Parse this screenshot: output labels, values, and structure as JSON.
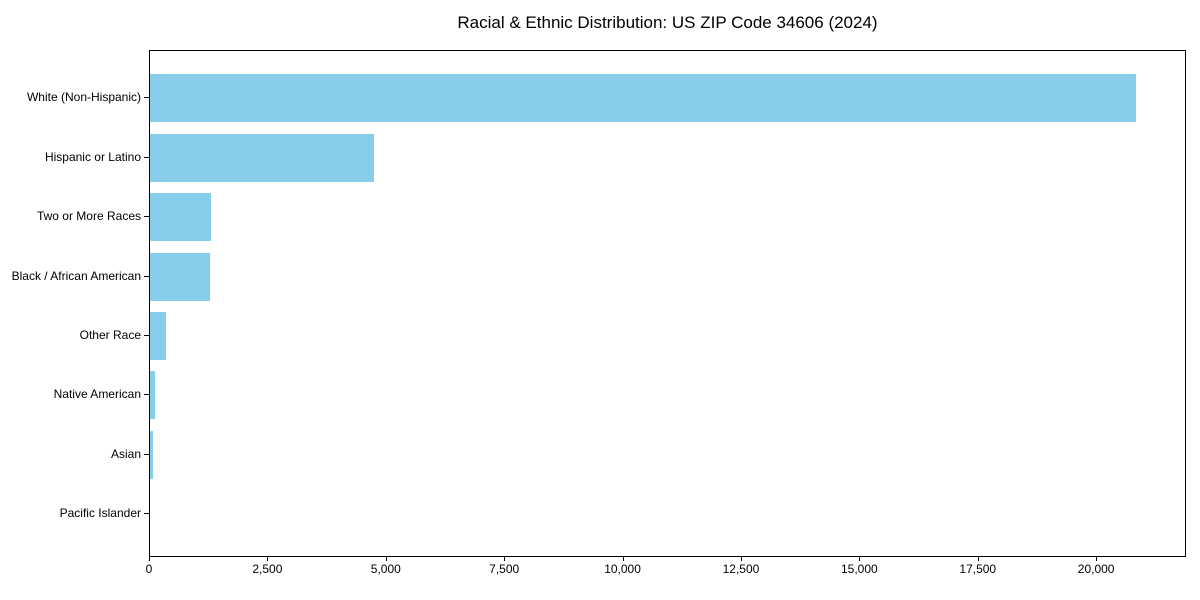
{
  "chart_data": {
    "type": "bar",
    "orientation": "horizontal",
    "title": "Racial & Ethnic Distribution: US ZIP Code 34606 (2024)",
    "categories": [
      "White (Non-Hispanic)",
      "Hispanic or Latino",
      "Two or More Races",
      "Black / African American",
      "Other Race",
      "Native American",
      "Asian",
      "Pacific Islander"
    ],
    "values": [
      20820,
      4740,
      1280,
      1260,
      340,
      115,
      70,
      0
    ],
    "xlabel": "",
    "ylabel": "",
    "xlim": [
      0,
      21855
    ],
    "xticks": [
      0,
      2500,
      5000,
      7500,
      10000,
      12500,
      15000,
      17500,
      20000
    ],
    "xtick_labels": [
      "0",
      "2,500",
      "5,000",
      "7,500",
      "10,000",
      "12,500",
      "15,000",
      "17,500",
      "20,000"
    ],
    "bar_color": "#87CEEB",
    "axis_color": "#000000",
    "background_color": "#ffffff",
    "grid": false,
    "legend": null
  }
}
